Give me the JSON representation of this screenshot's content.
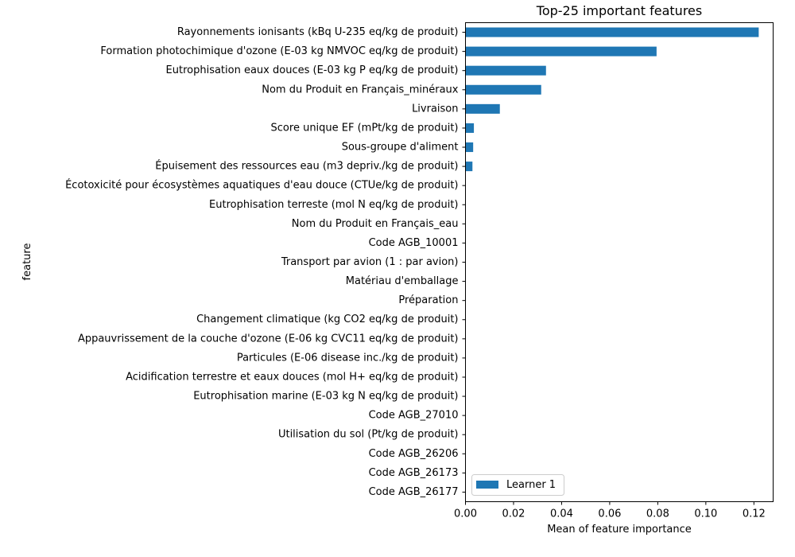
{
  "chart_data": {
    "type": "bar",
    "orientation": "horizontal",
    "title": "Top-25 important features",
    "xlabel": "Mean of feature importance",
    "ylabel": "feature",
    "xlim": [
      0,
      0.128
    ],
    "xticks": [
      "0.00",
      "0.02",
      "0.04",
      "0.06",
      "0.08",
      "0.10",
      "0.12"
    ],
    "xtick_values": [
      0,
      0.02,
      0.04,
      0.06,
      0.08,
      0.1,
      0.12
    ],
    "grid": false,
    "legend_position": "bottom-left",
    "bar_color": "#1f77b4",
    "categories": [
      "Rayonnements ionisants (kBq U-235 eq/kg de produit)",
      "Formation photochimique d'ozone (E-03 kg NMVOC eq/kg de produit)",
      "Eutrophisation eaux douces (E-03 kg P eq/kg de produit)",
      "Nom du Produit en Français_minéraux",
      "Livraison",
      "Score unique EF (mPt/kg de produit)",
      "Sous-groupe d'aliment",
      "Épuisement des ressources eau (m3 depriv./kg de produit)",
      "Écotoxicité pour écosystèmes aquatiques d'eau douce (CTUe/kg de produit)",
      "Eutrophisation terreste (mol N eq/kg de produit)",
      "Nom du Produit en Français_eau",
      "Code AGB_10001",
      "Transport par avion (1 : par avion)",
      "Matériau d'emballage",
      "Préparation",
      "Changement climatique (kg CO2 eq/kg de produit)",
      "Appauvrissement de la couche d'ozone (E-06 kg CVC11 eq/kg de produit)",
      "Particules (E-06 disease inc./kg de produit)",
      "Acidification terrestre et eaux douces (mol H+ eq/kg de produit)",
      "Eutrophisation marine (E-03 kg N eq/kg de produit)",
      "Code AGB_27010",
      "Utilisation du sol (Pt/kg de produit)",
      "Code AGB_26206",
      "Code AGB_26173",
      "Code AGB_26177"
    ],
    "series": [
      {
        "name": "Learner 1",
        "values": [
          0.122,
          0.0795,
          0.0335,
          0.0315,
          0.0143,
          0.0035,
          0.0032,
          0.0029,
          0.0001,
          0.0001,
          0.0001,
          0.0001,
          0.0001,
          0.0001,
          0.0001,
          0.0,
          0.0,
          0.0,
          0.0,
          0.0,
          0.0,
          0.0,
          0.0,
          0.0,
          0.0
        ]
      }
    ]
  }
}
